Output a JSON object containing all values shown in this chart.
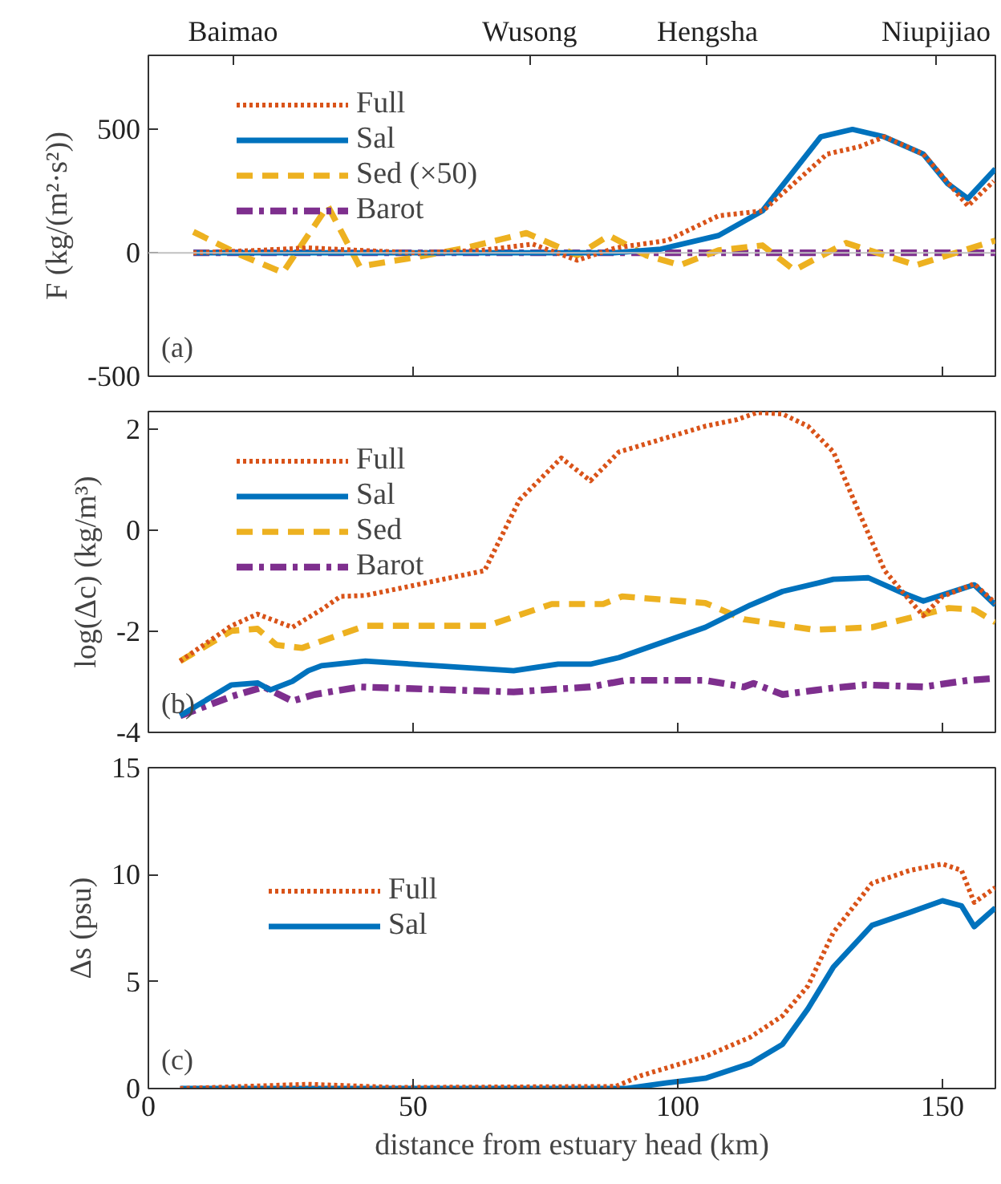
{
  "chart_data": [
    {
      "type": "line",
      "ylabel": "F (kg/(m²·s²))",
      "legend": "top left",
      "grid": false,
      "tick_labels": "y",
      "annotations": [
        "(a)",
        "Baimao",
        "Wusong",
        "Hengsha",
        "Niupijiao"
      ],
      "xlim": [
        0,
        160
      ],
      "xticks": [
        0,
        50,
        100,
        150
      ],
      "ylim": [
        -500,
        800
      ],
      "yticks": [
        -500,
        0,
        500
      ],
      "ref_lines": [
        {
          "axis": "y",
          "value": 0,
          "color": "#c0c0c0"
        }
      ],
      "series": [
        {
          "name": "Full",
          "color": "#d95319",
          "line_style": "dotted",
          "x": [
            8.5,
            20.6,
            30.2,
            39.9,
            50.8,
            62.9,
            72.6,
            81,
            88.3,
            98,
            107.7,
            116.1,
            128.2,
            134.3,
            139.1,
            146.4,
            154.8,
            159.7
          ],
          "values": [
            0,
            10,
            20,
            10,
            0,
            10,
            35,
            -30,
            20,
            50,
            150,
            170,
            400,
            430,
            470,
            400,
            190,
            290
          ]
        },
        {
          "name": "Sal",
          "color": "#0072bd",
          "line_style": "solid",
          "x": [
            8.5,
            50,
            88,
            96.8,
            107.7,
            116,
            127,
            133,
            139,
            146.4,
            151,
            154.8,
            160
          ],
          "values": [
            0,
            0,
            0,
            15,
            70,
            170,
            470,
            500,
            470,
            400,
            280,
            220,
            340
          ]
        },
        {
          "name": "Sed (×50)",
          "color": "#edb120",
          "line_style": "dashed",
          "x": [
            8.5,
            17,
            25.4,
            33.9,
            39.9,
            50,
            60,
            71.4,
            81,
            87,
            94,
            100.4,
            107.7,
            116,
            122,
            131.8,
            145,
            160
          ],
          "values": [
            85,
            -5,
            -80,
            190,
            -55,
            -20,
            20,
            80,
            -10,
            70,
            -10,
            -50,
            10,
            30,
            -70,
            40,
            -50,
            50
          ]
        },
        {
          "name": "Barot",
          "color": "#7e2f8e",
          "line_style": "dashdot",
          "x": [
            8.5,
            160
          ],
          "values": [
            0,
            0
          ]
        }
      ]
    },
    {
      "type": "line",
      "ylabel": "log(Δc) (kg/m³)",
      "annotations": [
        "(b)"
      ],
      "legend": "top left",
      "grid": false,
      "tick_labels": "y",
      "xlim": [
        0,
        160
      ],
      "xticks": [
        0,
        50,
        100,
        150
      ],
      "ylim": [
        -4,
        2.35
      ],
      "yticks": [
        -4,
        -2,
        0,
        2
      ],
      "series": [
        {
          "name": "Full",
          "color": "#d95319",
          "line_style": "dotted",
          "x": [
            6,
            15.7,
            20.6,
            27.2,
            32.7,
            36.3,
            41,
            63.5,
            70.1,
            78,
            83.5,
            88.9,
            105.2,
            111.2,
            115,
            119.8,
            124.6,
            129.4,
            134.3,
            139.1,
            142.7,
            146.4,
            150,
            156,
            160
          ],
          "values": [
            -2.59,
            -1.89,
            -1.66,
            -1.92,
            -1.57,
            -1.31,
            -1.29,
            -0.8,
            0.6,
            1.43,
            0.98,
            1.55,
            2.06,
            2.19,
            2.33,
            2.3,
            2.06,
            1.55,
            0.34,
            -0.8,
            -1.25,
            -1.69,
            -1.31,
            -1.06,
            -1.44
          ]
        },
        {
          "name": "Sal",
          "color": "#0072bd",
          "line_style": "solid",
          "x": [
            6,
            15.7,
            20.6,
            23,
            27.2,
            30.2,
            32.7,
            41,
            69,
            77.4,
            83.5,
            88.9,
            105.2,
            113.7,
            119.8,
            129.4,
            136,
            142.7,
            146.4,
            156,
            160
          ],
          "values": [
            -3.67,
            -3.06,
            -3.02,
            -3.16,
            -2.99,
            -2.78,
            -2.68,
            -2.59,
            -2.78,
            -2.65,
            -2.65,
            -2.52,
            -1.92,
            -1.48,
            -1.21,
            -0.97,
            -0.94,
            -1.25,
            -1.4,
            -1.08,
            -1.48
          ]
        },
        {
          "name": "Sed",
          "color": "#edb120",
          "line_style": "dashed",
          "x": [
            6,
            15.7,
            20.6,
            24.2,
            29,
            41,
            64.1,
            76.2,
            85.9,
            89.5,
            105.2,
            112.5,
            125.8,
            136.7,
            151.2,
            156,
            160
          ],
          "values": [
            -2.59,
            -1.99,
            -1.95,
            -2.27,
            -2.33,
            -1.89,
            -1.89,
            -1.46,
            -1.46,
            -1.31,
            -1.44,
            -1.76,
            -1.97,
            -1.92,
            -1.54,
            -1.57,
            -1.82
          ]
        },
        {
          "name": "Barot",
          "color": "#7e2f8e",
          "line_style": "dashdot",
          "x": [
            6,
            15.7,
            21.8,
            27.2,
            31.4,
            39.9,
            69,
            83.5,
            90.1,
            105.2,
            112.5,
            114.3,
            119.8,
            129.4,
            135.5,
            146.4,
            154.8,
            160
          ],
          "values": [
            -3.67,
            -3.29,
            -3.1,
            -3.38,
            -3.25,
            -3.1,
            -3.2,
            -3.1,
            -2.97,
            -2.97,
            -3.1,
            -3.03,
            -3.25,
            -3.12,
            -3.06,
            -3.1,
            -2.97,
            -2.93
          ]
        }
      ]
    },
    {
      "type": "line",
      "xlabel": "distance from estuary head (km)",
      "ylabel": "Δs (psu)",
      "annotations": [
        "(c)"
      ],
      "legend": "left",
      "grid": false,
      "xlim": [
        0,
        160
      ],
      "xticks": [
        0,
        50,
        100,
        150
      ],
      "ylim": [
        0,
        15
      ],
      "yticks": [
        0,
        5,
        10,
        15
      ],
      "series": [
        {
          "name": "Full",
          "color": "#d95319",
          "line_style": "dotted",
          "x": [
            6,
            30.2,
            47,
            88.3,
            93,
            105.2,
            113.7,
            119.8,
            124.6,
            129.4,
            136.7,
            143.9,
            150,
            153.6,
            156,
            160
          ],
          "values": [
            0,
            0.2,
            0.05,
            0.1,
            0.6,
            1.5,
            2.4,
            3.4,
            4.8,
            7.3,
            9.6,
            10.2,
            10.5,
            10.2,
            8.7,
            9.4
          ]
        },
        {
          "name": "Sal",
          "color": "#0072bd",
          "line_style": "solid",
          "x": [
            6,
            90.1,
            98,
            105.2,
            113.7,
            119.8,
            124.6,
            129.4,
            136.7,
            143.9,
            150,
            153.6,
            156,
            160
          ],
          "values": [
            0,
            0,
            0.27,
            0.48,
            1.17,
            2.07,
            3.73,
            5.68,
            7.63,
            8.24,
            8.78,
            8.54,
            7.57,
            8.45
          ]
        }
      ]
    }
  ]
}
